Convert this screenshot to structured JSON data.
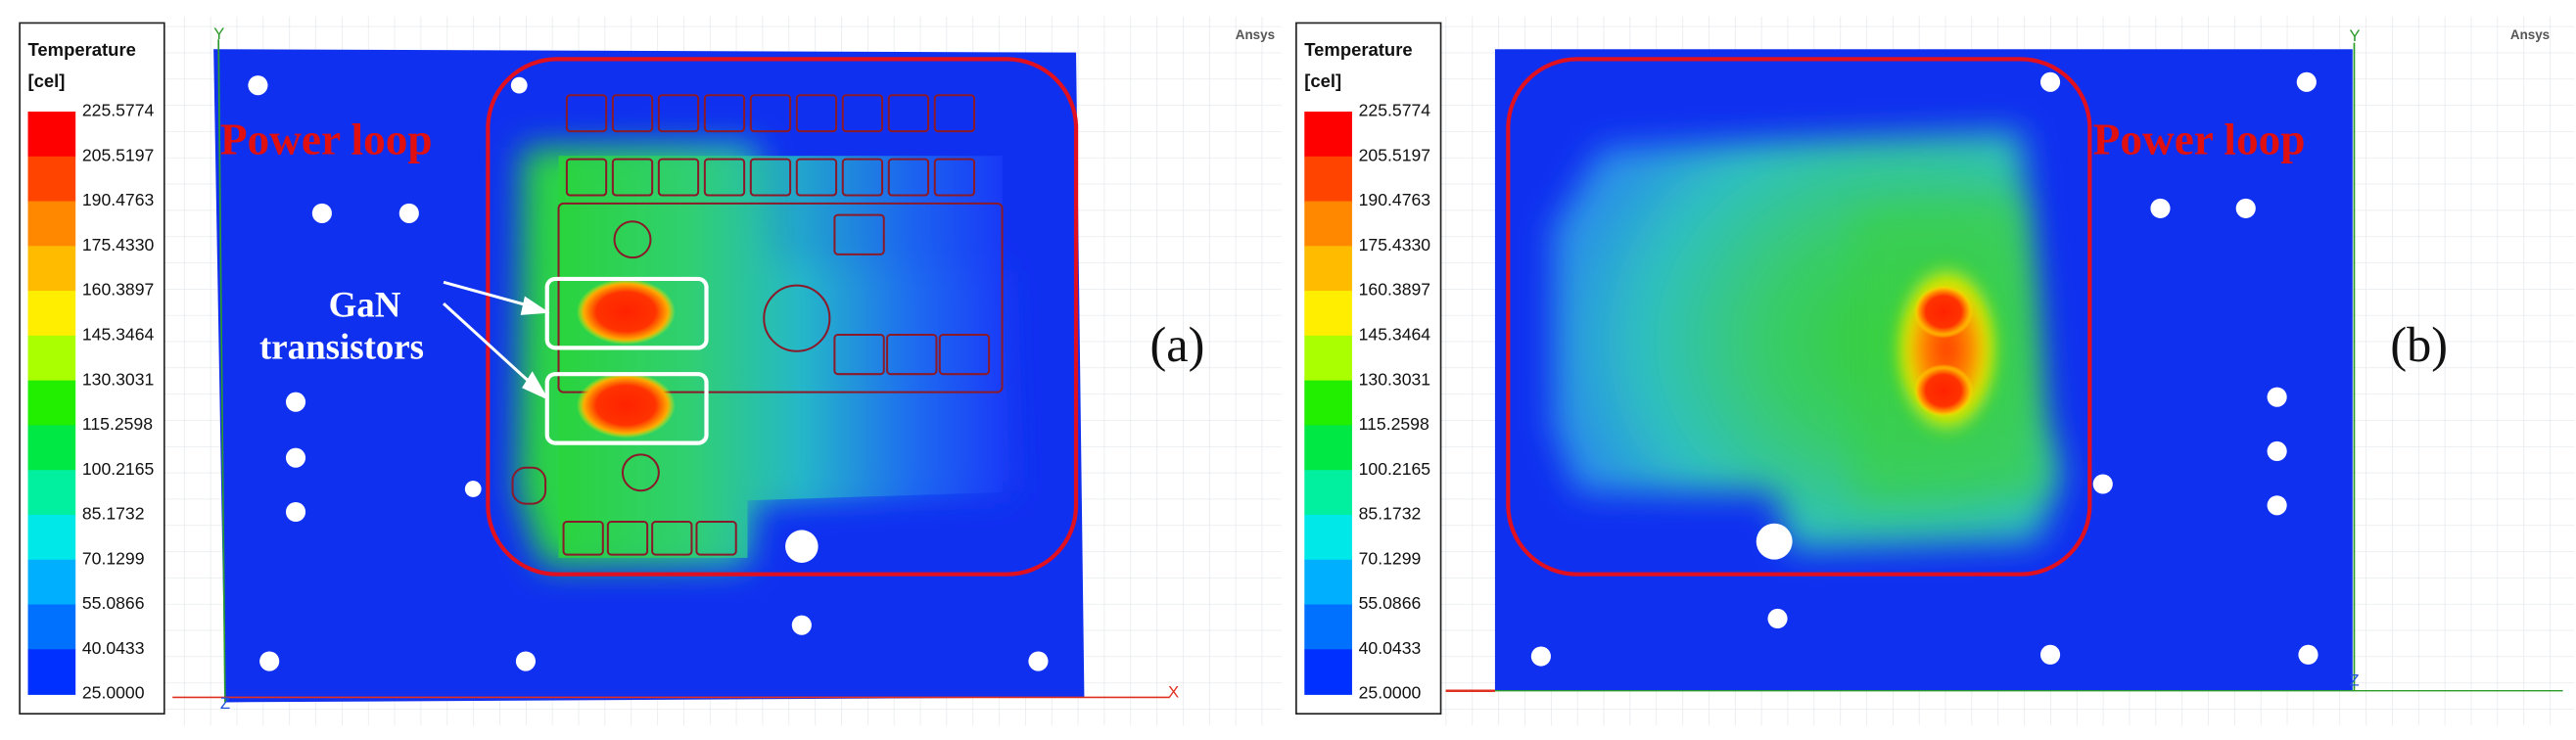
{
  "panels": [
    {
      "label": "(a)",
      "software": "Ansys",
      "annotation": "Power loop",
      "callout": [
        "GaN",
        "transistors"
      ],
      "axes": {
        "top": "Y",
        "right": "X",
        "origin": "Z"
      },
      "legend": {
        "title": "Temperature",
        "unit": "[cel]",
        "ticks": [
          "225.5774",
          "205.5197",
          "190.4763",
          "175.4330",
          "160.3897",
          "145.3464",
          "130.3031",
          "115.2598",
          "100.2165",
          "85.1732",
          "70.1299",
          "55.0866",
          "40.0433",
          "25.0000"
        ]
      }
    },
    {
      "label": "(b)",
      "software": "Ansys",
      "annotation": "Power loop",
      "axes": {
        "top": "Y",
        "right": "Z"
      },
      "legend": {
        "title": "Temperature",
        "unit": "[cel]",
        "ticks": [
          "225.5774",
          "205.5197",
          "190.4763",
          "175.4330",
          "160.3897",
          "145.3464",
          "130.3031",
          "115.2598",
          "100.2165",
          "85.1732",
          "70.1299",
          "55.0866",
          "40.0433",
          "25.0000"
        ]
      }
    }
  ]
}
